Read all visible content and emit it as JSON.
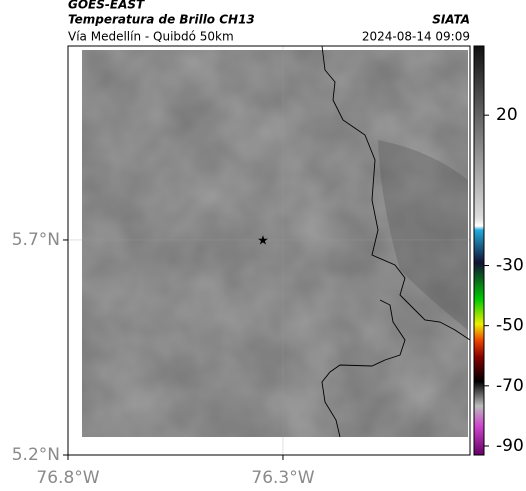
{
  "header": {
    "product": "GOES-EAST",
    "title": "Temperatura de Brillo CH13",
    "source": "SIATA",
    "route": "Vía Medellín - Quibdó 50km",
    "datetime": "2024-08-14 09:09"
  },
  "map": {
    "xlim": [
      -76.8,
      -75.865
    ],
    "ylim": [
      5.2,
      6.151
    ],
    "xticks": [
      {
        "value": -76.8,
        "label": "76.8°W"
      },
      {
        "value": -76.3,
        "label": "76.3°W"
      }
    ],
    "yticks": [
      {
        "value": 5.7,
        "label": "5.7°N"
      },
      {
        "value": 5.2,
        "label": "5.2°N"
      }
    ],
    "grid": true
  },
  "colorbar": {
    "lim": [
      -93,
      43
    ],
    "ticks": [
      20,
      -30,
      -50,
      -70,
      -90
    ]
  }
}
